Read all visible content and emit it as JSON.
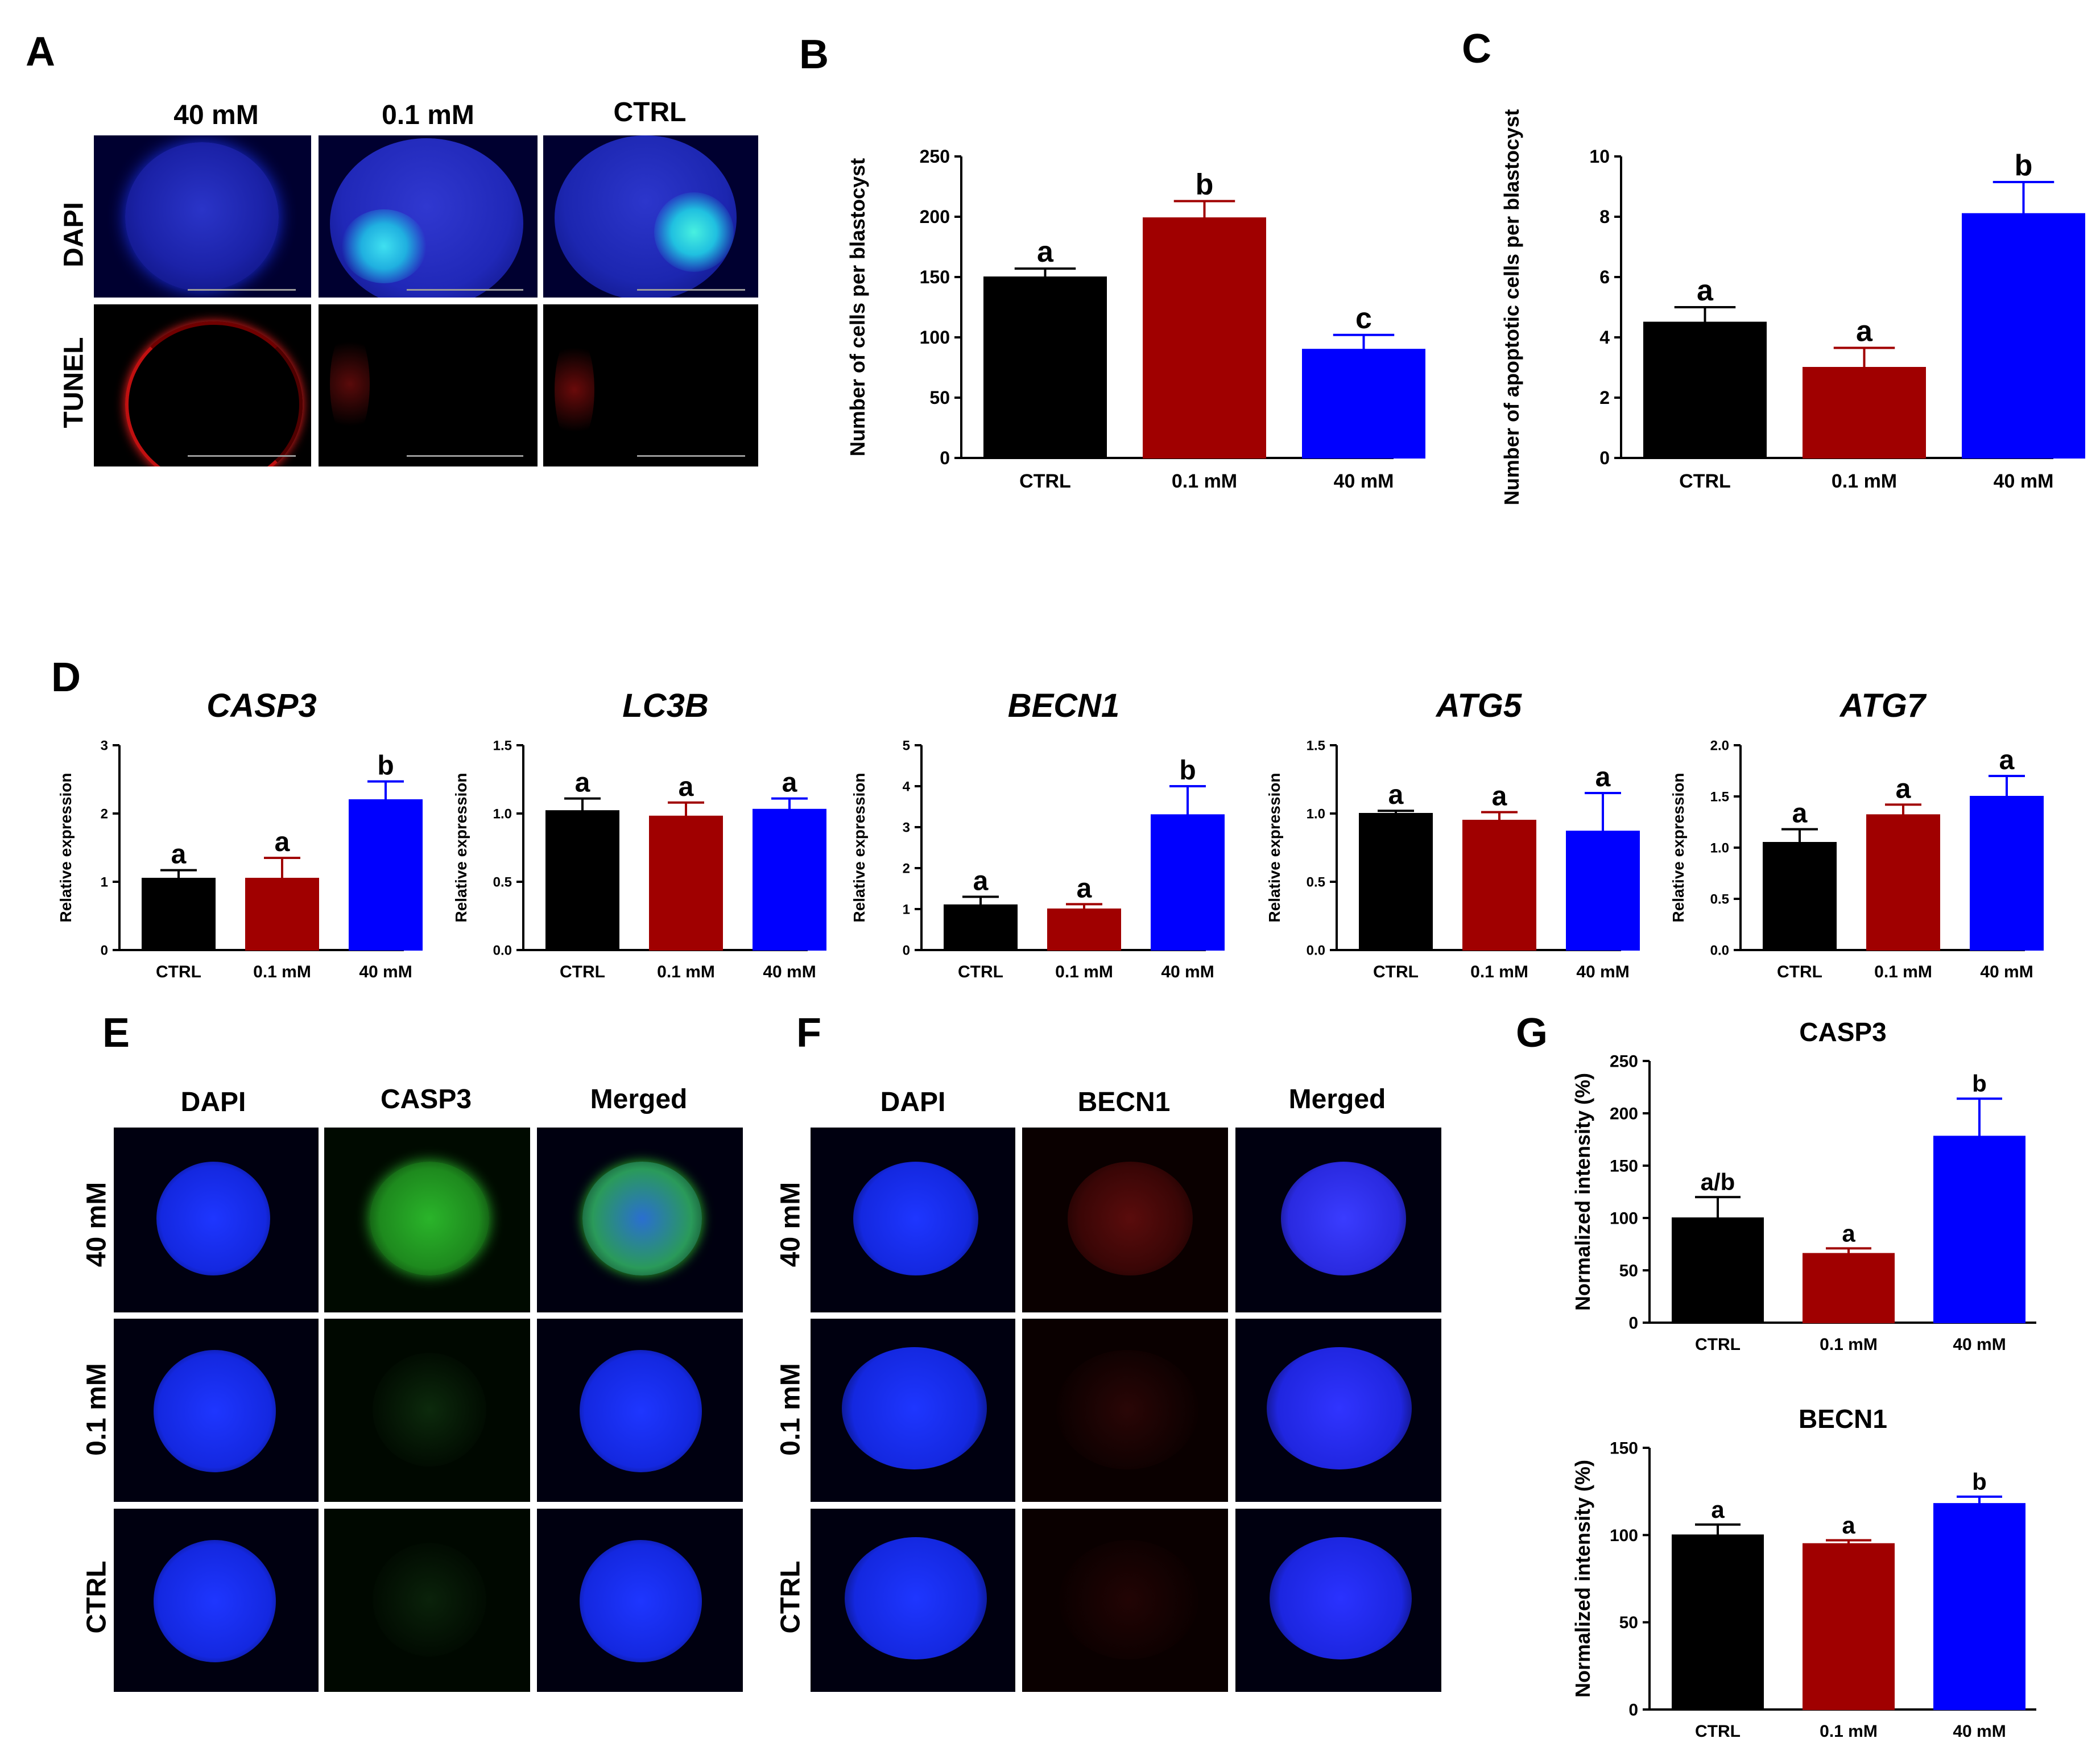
{
  "panels": {
    "A": {
      "letter": "A",
      "columns": [
        "40 mM",
        "0.1 mM",
        "CTRL"
      ],
      "rows": [
        "DAPI",
        "TUNEL"
      ]
    },
    "E": {
      "letter": "E",
      "columns": [
        "DAPI",
        "CASP3",
        "Merged"
      ],
      "rows": [
        "40 mM",
        "0.1 mM",
        "CTRL"
      ]
    },
    "F": {
      "letter": "F",
      "columns": [
        "DAPI",
        "BECN1",
        "Merged"
      ],
      "rows": [
        "40 mM",
        "0.1 mM",
        "CTRL"
      ]
    },
    "D": {
      "letter": "D"
    },
    "G": {
      "letter": "G"
    }
  },
  "colors": {
    "ctrl": "#000000",
    "low": "#a00000",
    "high": "#0000ff",
    "dapi": "#1a2ee0",
    "casp3": "#2db52d",
    "becn1": "#8a1010"
  },
  "chart_data": [
    {
      "id": "B",
      "letter": "B",
      "type": "bar",
      "categories": [
        "CTRL",
        "0.1 mM",
        "40 mM"
      ],
      "values": [
        150,
        199,
        90
      ],
      "errors": [
        7,
        14,
        12
      ],
      "letters": [
        "a",
        "b",
        "c"
      ],
      "ylabel": "Number of cells per blastocyst",
      "ylim": [
        0,
        250
      ],
      "yticks": [
        "0",
        "50",
        "100",
        "150",
        "200",
        "250"
      ],
      "tickvals": [
        0,
        50,
        100,
        150,
        200,
        250
      ],
      "title": "",
      "italic": false
    },
    {
      "id": "C",
      "letter": "C",
      "type": "bar",
      "categories": [
        "CTRL",
        "0.1 mM",
        "40 mM"
      ],
      "values": [
        4.5,
        3.0,
        8.1
      ],
      "errors": [
        0.5,
        0.65,
        1.05
      ],
      "letters": [
        "a",
        "a",
        "b"
      ],
      "ylabel": "Number of apoptotic cells per blastocyst",
      "ylim": [
        0,
        10
      ],
      "yticks": [
        "0",
        "2",
        "4",
        "6",
        "8",
        "10"
      ],
      "tickvals": [
        0,
        2,
        4,
        6,
        8,
        10
      ],
      "title": "",
      "italic": false
    },
    {
      "id": "D1",
      "type": "bar",
      "categories": [
        "CTRL",
        "0.1 mM",
        "40 mM"
      ],
      "values": [
        1.05,
        1.05,
        2.2
      ],
      "errors": [
        0.12,
        0.3,
        0.27
      ],
      "letters": [
        "a",
        "a",
        "b"
      ],
      "ylabel": "Relative expression",
      "ylim": [
        0,
        3
      ],
      "yticks": [
        "0",
        "1",
        "2",
        "3"
      ],
      "tickvals": [
        0,
        1,
        2,
        3
      ],
      "title": "CASP3",
      "italic": true
    },
    {
      "id": "D2",
      "type": "bar",
      "categories": [
        "CTRL",
        "0.1 mM",
        "40 mM"
      ],
      "values": [
        1.02,
        0.98,
        1.03
      ],
      "errors": [
        0.09,
        0.1,
        0.08
      ],
      "letters": [
        "a",
        "a",
        "a"
      ],
      "ylabel": "Relative expression",
      "ylim": [
        0,
        1.5
      ],
      "yticks": [
        "0.0",
        "0.5",
        "1.0",
        "1.5"
      ],
      "tickvals": [
        0,
        0.5,
        1.0,
        1.5
      ],
      "title": "LC3B",
      "italic": true
    },
    {
      "id": "D3",
      "type": "bar",
      "categories": [
        "CTRL",
        "0.1 mM",
        "40 mM"
      ],
      "values": [
        1.1,
        1.0,
        3.3
      ],
      "errors": [
        0.2,
        0.12,
        0.7
      ],
      "letters": [
        "a",
        "a",
        "b"
      ],
      "ylabel": "Relative expression",
      "ylim": [
        0,
        5
      ],
      "yticks": [
        "0",
        "1",
        "2",
        "3",
        "4",
        "5"
      ],
      "tickvals": [
        0,
        1,
        2,
        3,
        4,
        5
      ],
      "title": "BECN1",
      "italic": true
    },
    {
      "id": "D4",
      "type": "bar",
      "categories": [
        "CTRL",
        "0.1 mM",
        "40 mM"
      ],
      "values": [
        1.0,
        0.95,
        0.87
      ],
      "errors": [
        0.02,
        0.06,
        0.28
      ],
      "letters": [
        "a",
        "a",
        "a"
      ],
      "ylabel": "Relative expression",
      "ylim": [
        0,
        1.5
      ],
      "yticks": [
        "0.0",
        "0.5",
        "1.0",
        "1.5"
      ],
      "tickvals": [
        0,
        0.5,
        1.0,
        1.5
      ],
      "title": "ATG5",
      "italic": true
    },
    {
      "id": "D5",
      "type": "bar",
      "categories": [
        "CTRL",
        "0.1 mM",
        "40 mM"
      ],
      "values": [
        1.05,
        1.32,
        1.5
      ],
      "errors": [
        0.13,
        0.1,
        0.2
      ],
      "letters": [
        "a",
        "a",
        "a"
      ],
      "ylabel": "Relative expression",
      "ylim": [
        0,
        2.0
      ],
      "yticks": [
        "0.0",
        "0.5",
        "1.0",
        "1.5",
        "2.0"
      ],
      "tickvals": [
        0,
        0.5,
        1.0,
        1.5,
        2.0
      ],
      "title": "ATG7",
      "italic": true
    },
    {
      "id": "G1",
      "type": "bar",
      "categories": [
        "CTRL",
        "0.1 mM",
        "40 mM"
      ],
      "values": [
        100,
        66,
        178
      ],
      "errors": [
        20,
        5,
        36
      ],
      "letters": [
        "a/b",
        "a",
        "b"
      ],
      "ylabel": "Normalized intensity (%)",
      "ylim": [
        0,
        250
      ],
      "yticks": [
        "0",
        "50",
        "100",
        "150",
        "200",
        "250"
      ],
      "tickvals": [
        0,
        50,
        100,
        150,
        200,
        250
      ],
      "title": "CASP3",
      "italic": false
    },
    {
      "id": "G2",
      "type": "bar",
      "categories": [
        "CTRL",
        "0.1 mM",
        "40 mM"
      ],
      "values": [
        100,
        95,
        118
      ],
      "errors": [
        6,
        2,
        4
      ],
      "letters": [
        "a",
        "a",
        "b"
      ],
      "ylabel": "Normalized intensity (%)",
      "ylim": [
        0,
        150
      ],
      "yticks": [
        "0",
        "50",
        "100",
        "150"
      ],
      "tickvals": [
        0,
        50,
        100,
        150
      ],
      "title": "BECN1",
      "italic": false
    }
  ]
}
